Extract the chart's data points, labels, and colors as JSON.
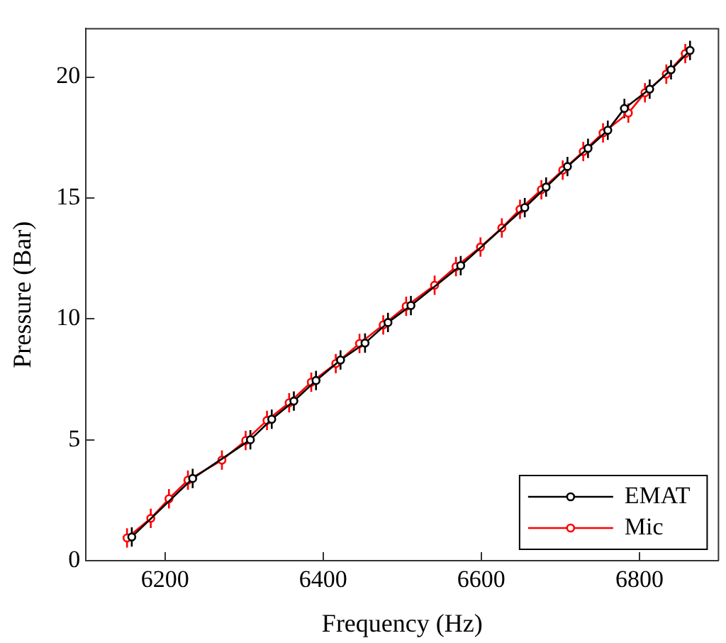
{
  "chart_data": {
    "type": "line",
    "xlabel": "Frequency (Hz)",
    "ylabel": "Pressure (Bar)",
    "xlim": [
      6100,
      6900
    ],
    "xticks": [
      6200,
      6400,
      6600,
      6800
    ],
    "ylim": [
      0,
      22
    ],
    "yticks": [
      0,
      5,
      10,
      15,
      20
    ],
    "grid": false,
    "legend": "bottom right",
    "marker": "circle",
    "line_style": "solid",
    "series": [
      {
        "name": "EMAT",
        "color": "#000000",
        "x": [
          6158,
          6235,
          6308,
          6335,
          6363,
          6391,
          6422,
          6453,
          6482,
          6511,
          6574,
          6655,
          6682,
          6709,
          6735,
          6760,
          6781,
          6813,
          6840,
          6864
        ],
        "values": [
          0.98,
          3.4,
          5.0,
          5.85,
          6.6,
          7.45,
          8.3,
          9.0,
          9.85,
          10.55,
          12.2,
          14.6,
          15.45,
          16.3,
          17.05,
          17.8,
          18.7,
          19.5,
          20.3,
          21.1
        ],
        "errors": [
          0.4,
          0.4,
          0.4,
          0.4,
          0.4,
          0.4,
          0.4,
          0.4,
          0.4,
          0.4,
          0.4,
          0.4,
          0.4,
          0.4,
          0.4,
          0.4,
          0.4,
          0.4,
          0.4,
          0.4
        ]
      },
      {
        "name": "Mic",
        "color": "#ff0000",
        "x": [
          6152,
          6182,
          6205,
          6229,
          6272,
          6302,
          6329,
          6357,
          6385,
          6416,
          6446,
          6476,
          6505,
          6541,
          6568,
          6599,
          6626,
          6649,
          6676,
          6703,
          6729,
          6754,
          6786,
          6807,
          6834,
          6858
        ],
        "values": [
          0.94,
          1.75,
          2.56,
          3.33,
          4.16,
          4.97,
          5.8,
          6.53,
          7.38,
          8.15,
          8.98,
          9.75,
          10.52,
          11.39,
          12.16,
          12.97,
          13.76,
          14.53,
          15.34,
          16.15,
          16.92,
          17.69,
          18.51,
          19.35,
          20.12,
          20.97
        ],
        "errors": [
          0.4,
          0.4,
          0.4,
          0.4,
          0.4,
          0.4,
          0.4,
          0.4,
          0.4,
          0.4,
          0.4,
          0.4,
          0.4,
          0.4,
          0.4,
          0.4,
          0.4,
          0.4,
          0.4,
          0.4,
          0.4,
          0.4,
          0.4,
          0.4,
          0.4,
          0.4
        ]
      }
    ]
  }
}
